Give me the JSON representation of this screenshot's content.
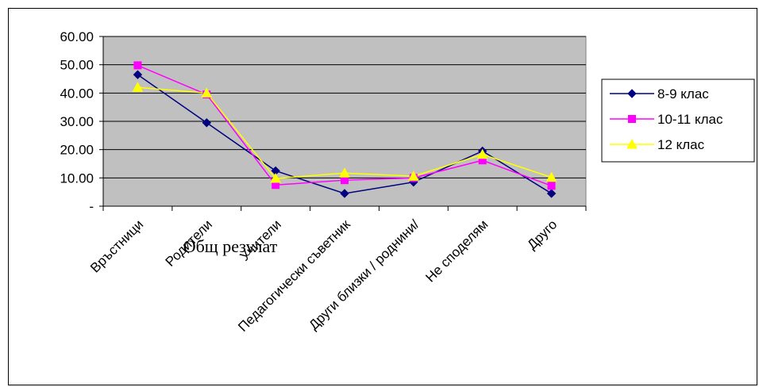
{
  "chart_data": {
    "type": "line",
    "title": "Общ резулат",
    "xlabel": "",
    "ylabel": "",
    "categories": [
      "Връстници",
      "Родители",
      "Учители",
      "Педагогически съветник",
      "Други близки / роднини/",
      "Не споделям",
      "Друго"
    ],
    "y_tick_labels": [
      "-",
      "10.00",
      "20.00",
      "30.00",
      "40.00",
      "50.00",
      "60.00"
    ],
    "ylim": [
      0,
      60
    ],
    "grid": true,
    "legend_position": "right",
    "plot_background": "#c0c0c0",
    "series": [
      {
        "name": "8-9 клас",
        "color": "#000080",
        "marker": "diamond",
        "values": [
          46.5,
          29.5,
          12.5,
          4.5,
          8.5,
          19.5,
          4.5
        ]
      },
      {
        "name": "10-11 клас",
        "color": "#ff00ff",
        "marker": "square",
        "values": [
          49.8,
          39.5,
          7.5,
          9.2,
          10.0,
          16.2,
          7.2
        ]
      },
      {
        "name": "12 клас",
        "color": "#ffff00",
        "marker": "triangle",
        "values": [
          42.0,
          40.0,
          9.8,
          11.7,
          10.6,
          18.3,
          10.2
        ]
      }
    ]
  }
}
